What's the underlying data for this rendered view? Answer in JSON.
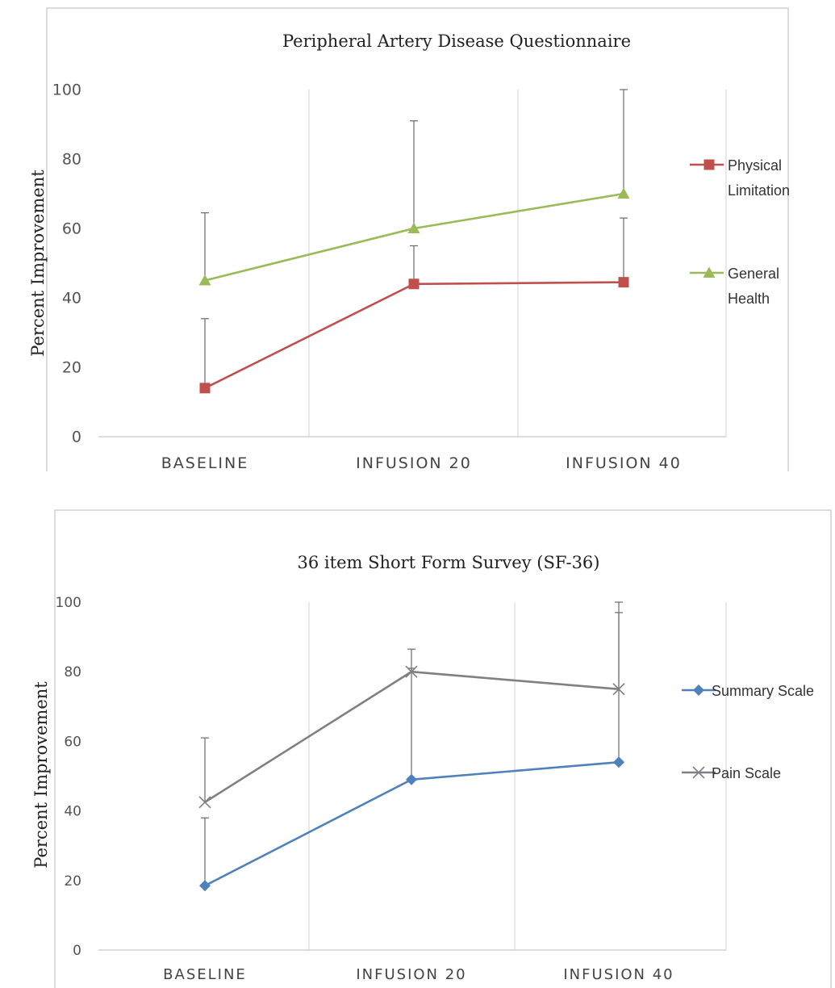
{
  "chart_data": [
    {
      "type": "line",
      "title": "Peripheral Artery Disease Questionnaire",
      "ylabel": "Percent Improvement",
      "xlabel": "",
      "categories": [
        "BASELINE",
        "INFUSION 20",
        "INFUSION 40"
      ],
      "ylim": [
        0,
        100
      ],
      "yticks": [
        0,
        20,
        40,
        60,
        80,
        100
      ],
      "grid": "vertical lines between categories",
      "legend_position": "right",
      "series": [
        {
          "name": "Physical Limitation",
          "legend_lines": [
            "Physical",
            "Limitation"
          ],
          "color": "#c0504d",
          "marker": "square",
          "values": [
            14,
            44,
            44.5
          ],
          "error_upper": [
            34,
            55,
            63
          ]
        },
        {
          "name": "General Health",
          "legend_lines": [
            "General",
            "Health"
          ],
          "color": "#9bbb59",
          "marker": "triangle",
          "values": [
            45,
            60,
            70
          ],
          "error_upper": [
            64.5,
            91,
            100
          ]
        }
      ]
    },
    {
      "type": "line",
      "title": "36 item Short Form Survey (SF-36)",
      "ylabel": "Percent Improvement",
      "xlabel": "",
      "categories": [
        "BASELINE",
        "INFUSION 20",
        "INFUSION 40"
      ],
      "ylim": [
        0,
        100
      ],
      "yticks": [
        0,
        20,
        40,
        60,
        80,
        100
      ],
      "grid": "vertical lines between categories",
      "legend_position": "right",
      "series": [
        {
          "name": "Summary Scale",
          "legend_lines": [
            "Summary Scale"
          ],
          "color": "#4f81bd",
          "marker": "diamond",
          "values": [
            18.5,
            49,
            54
          ],
          "error_upper": [
            38,
            81,
            97
          ]
        },
        {
          "name": "Pain Scale",
          "legend_lines": [
            "Pain Scale"
          ],
          "color": "#7f7f86",
          "marker": "x",
          "values": [
            42.5,
            80,
            75
          ],
          "error_upper": [
            61,
            86.5,
            100
          ]
        }
      ]
    }
  ]
}
